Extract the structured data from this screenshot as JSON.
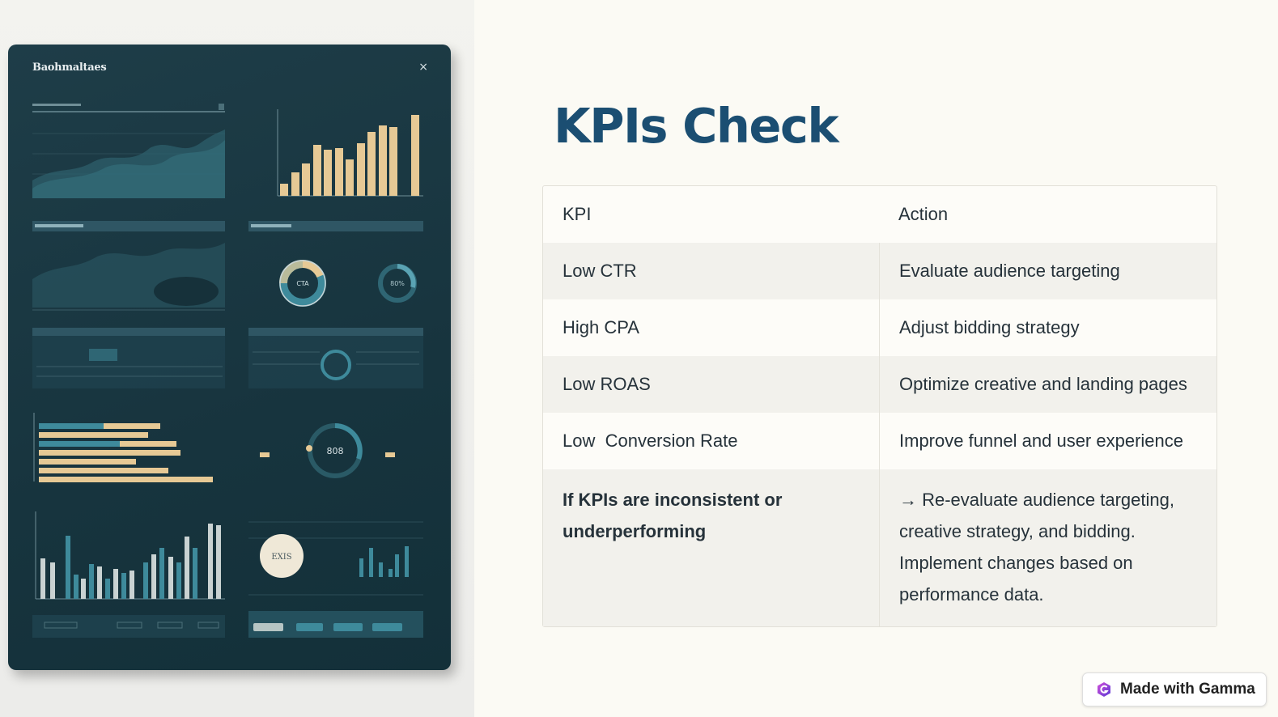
{
  "illustration": {
    "title": "Baohmaltaes",
    "close_glyph": "×",
    "donut_labels": [
      "CTA",
      "80%",
      "808",
      "EXIS"
    ],
    "colors": {
      "panel_bg": "#1b3a45",
      "accent_tan": "#e6c995",
      "accent_teal": "#3e8a9b"
    }
  },
  "slide": {
    "title": "KPIs Check"
  },
  "table": {
    "headers": {
      "kpi": "KPI",
      "action": "Action"
    },
    "rows": [
      {
        "kpi": "Low CTR",
        "action": "Evaluate audience targeting"
      },
      {
        "kpi": "High CPA",
        "action": "Adjust bidding strategy"
      },
      {
        "kpi": "Low ROAS",
        "action": "Optimize creative and landing pages"
      },
      {
        "kpi": "Low  Conversion Rate",
        "action": "Improve funnel and user experience"
      }
    ],
    "summary": {
      "kpi": "If KPIs are inconsistent or underperforming",
      "action": "→ Re-evaluate audience targeting, creative strategy, and bidding. Implement changes based on performance data."
    }
  },
  "badge": {
    "label": "Made with Gamma",
    "icon": "gamma-logo-icon"
  }
}
